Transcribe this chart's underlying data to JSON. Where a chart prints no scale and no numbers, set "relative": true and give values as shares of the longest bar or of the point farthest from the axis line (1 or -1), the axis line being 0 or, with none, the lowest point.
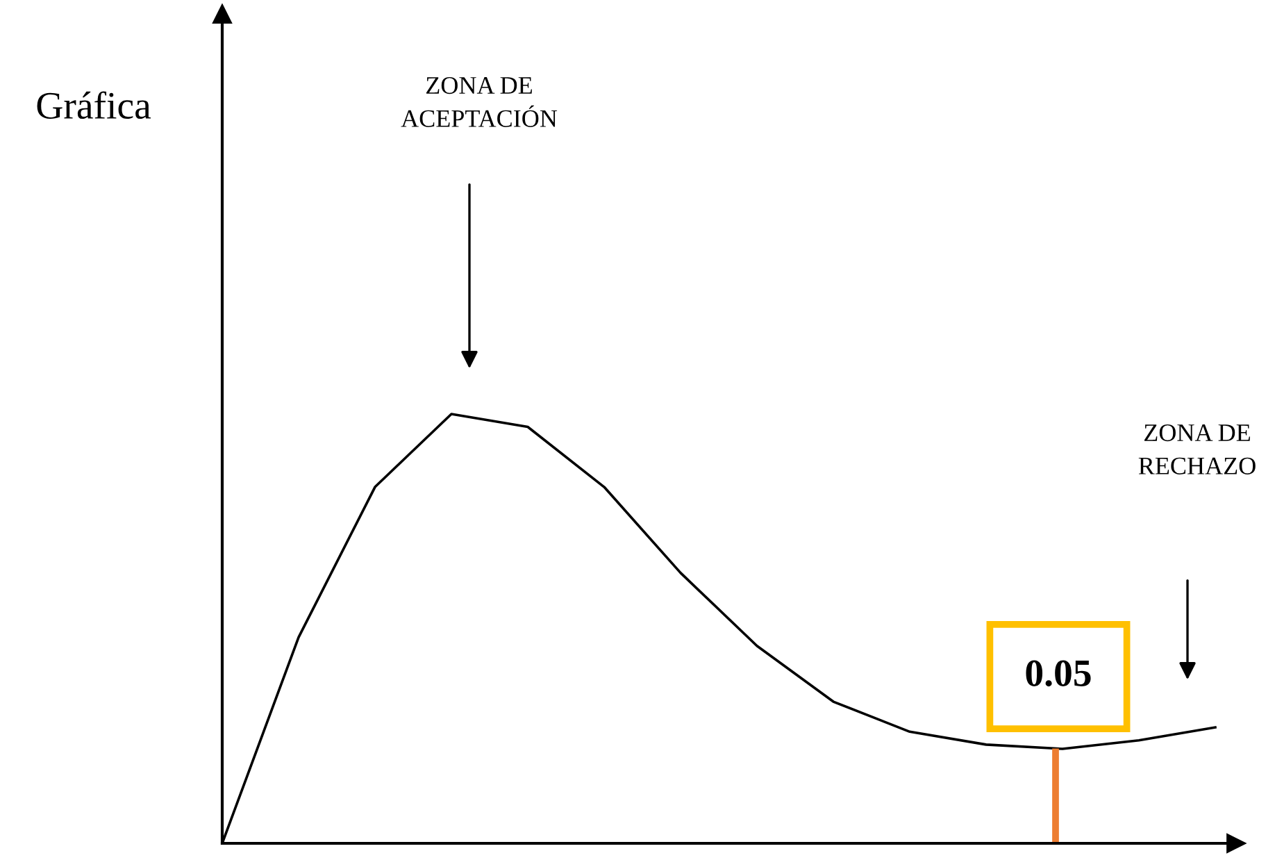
{
  "chart_data": {
    "type": "line",
    "relative": true,
    "title": "Gráfica",
    "categories": [
      null,
      null,
      null,
      null,
      null,
      null,
      null,
      null,
      null,
      null,
      null,
      null,
      null,
      null
    ],
    "series": [
      {
        "color": "#000000",
        "values": [
          0,
          0.48,
          0.83,
          1,
          0.97,
          0.83,
          0.63,
          0.46,
          0.33,
          0.26,
          0.23,
          0.22,
          0.24,
          0.27
        ]
      }
    ],
    "annotations": [
      "ZONA DE\nACEPTACIÓN",
      "ZONA DE\nRECHAZO",
      "0.05"
    ],
    "marker": "none",
    "line_style": "solid"
  }
}
